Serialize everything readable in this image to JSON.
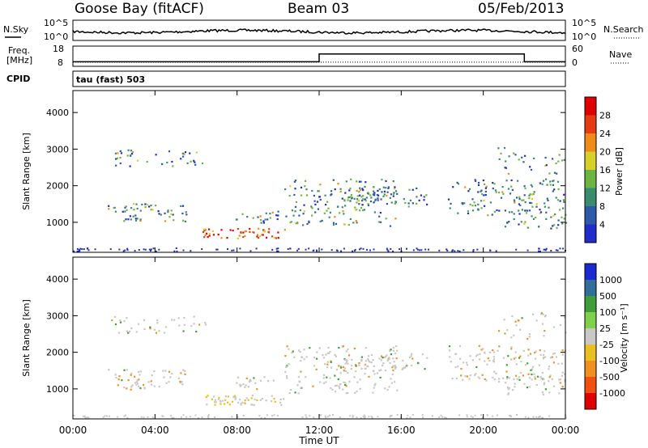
{
  "header": {
    "station": "Goose Bay (fitACF)",
    "beam": "Beam 03",
    "date": "05/Feb/2013"
  },
  "labels": {
    "nsky": "N.Sky",
    "nsearch": "N.Search",
    "freq_line1": "Freq.",
    "freq_line2": "[MHz]",
    "nave": "Nave",
    "cpid": "CPID",
    "cpid_value": "tau (fast) 503",
    "x_axis": "Time UT",
    "y_axis_slant": "Slant Range [km]"
  },
  "noise_panel": {
    "left_ticks": [
      "10^5",
      "10^0"
    ],
    "right_ticks": [
      "10^5",
      "10^0"
    ]
  },
  "freq_panel": {
    "left_ticks": [
      "18",
      "8"
    ],
    "right_ticks": [
      "60",
      "0"
    ],
    "freq_steps": [
      [
        0,
        10.0
      ],
      [
        12.0,
        10.0
      ],
      [
        12.0,
        14.2
      ],
      [
        22.0,
        14.2
      ],
      [
        22.0,
        10.0
      ],
      [
        24.0,
        10.0
      ]
    ],
    "nave_level": 10
  },
  "chart_data": [
    {
      "type": "heatmap",
      "name": "power",
      "xlabel": "Time UT",
      "ylabel": "Slant Range [km]",
      "colorbar_label": "Power [dB]",
      "colorbar_ticks": [
        "4",
        "8",
        "12",
        "16",
        "20",
        "24",
        "28"
      ],
      "colors": [
        "#1e2dcc",
        "#2c5aa8",
        "#3b8b6e",
        "#6bb540",
        "#d6d02a",
        "#f08a18",
        "#e63c14",
        "#e00000"
      ],
      "xlim": [
        0,
        24
      ],
      "ylim": [
        180,
        4600
      ],
      "x_ticks": [
        "00:00",
        "04:00",
        "08:00",
        "12:00",
        "16:00",
        "20:00",
        "00:00"
      ],
      "y_ticks": [
        "1000",
        "2000",
        "3000",
        "4000"
      ]
    },
    {
      "type": "heatmap",
      "name": "velocity",
      "xlabel": "Time UT",
      "ylabel": "Slant Range [km]",
      "colorbar_label": "Velocity [m s⁻¹]",
      "colorbar_ticks": [
        "1000",
        "500",
        "100",
        "25",
        "-25",
        "-100",
        "-500",
        "-1000"
      ],
      "colors": [
        "#1a2ad0",
        "#2f6f9a",
        "#3f9e3a",
        "#7fd04a",
        "#c8c8c4",
        "#e8c020",
        "#f09020",
        "#f05010",
        "#e00000"
      ],
      "xlim": [
        0,
        24
      ],
      "ylim": [
        180,
        4600
      ],
      "x_ticks": [
        "00:00",
        "04:00",
        "08:00",
        "12:00",
        "16:00",
        "20:00",
        "00:00"
      ],
      "y_ticks": [
        "1000",
        "2000",
        "3000",
        "4000"
      ]
    }
  ]
}
